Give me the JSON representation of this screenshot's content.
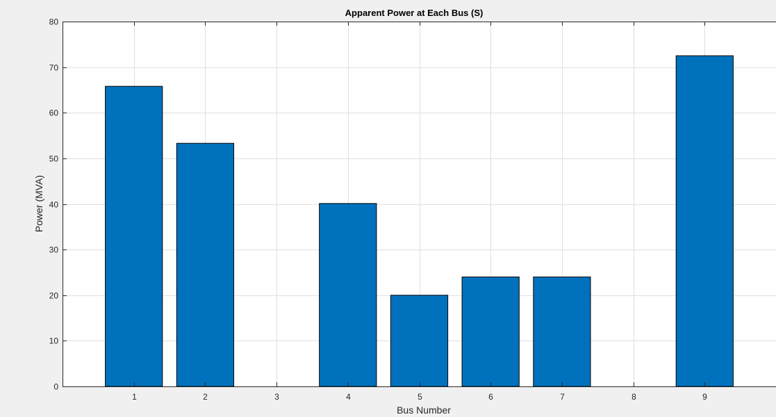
{
  "chart_data": {
    "type": "bar",
    "title": "Apparent Power at Each Bus (S)",
    "xlabel": "Bus Number",
    "ylabel": "Power (MVA)",
    "categories": [
      "1",
      "2",
      "3",
      "4",
      "5",
      "6",
      "7",
      "8",
      "9"
    ],
    "x": [
      1,
      2,
      3,
      4,
      5,
      6,
      7,
      8,
      9
    ],
    "values": [
      65.8,
      53.3,
      0,
      40.1,
      20.0,
      24.0,
      24.0,
      0,
      72.5
    ],
    "xlim": [
      0,
      10
    ],
    "ylim": [
      0,
      80
    ],
    "yticks": [
      0,
      10,
      20,
      30,
      40,
      50,
      60,
      70,
      80
    ],
    "grid": true,
    "bar_color": "#0072bd",
    "background": "#ffffff"
  }
}
